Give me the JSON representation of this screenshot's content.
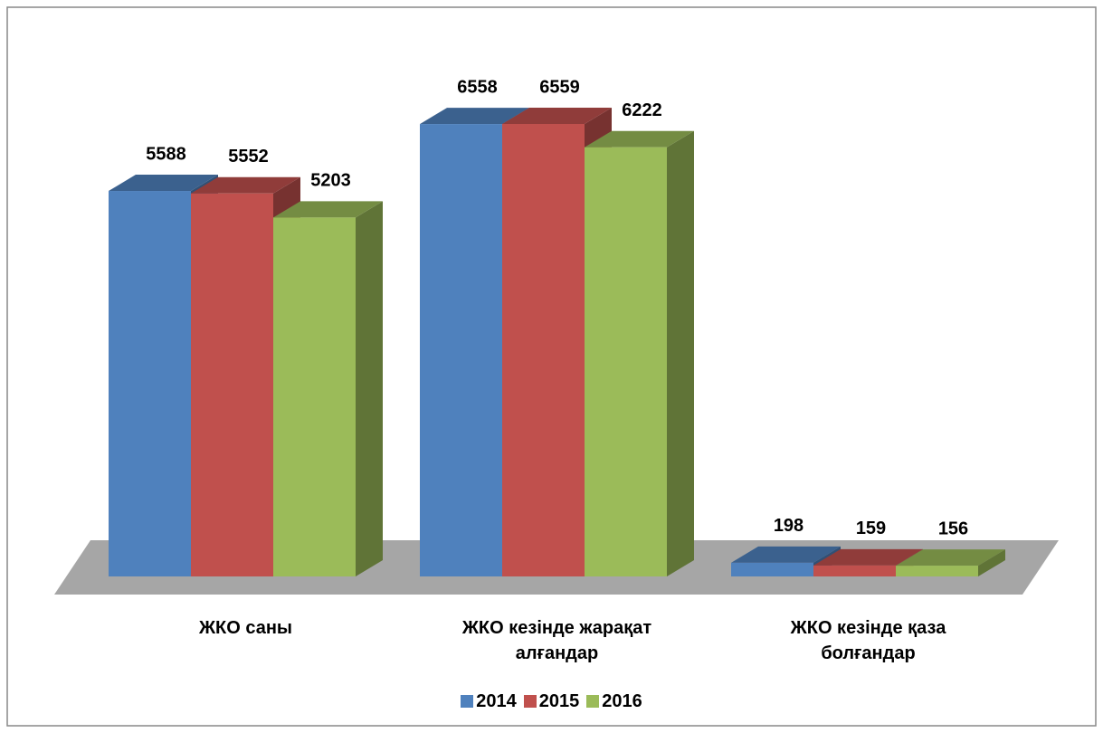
{
  "chart_data": {
    "type": "bar3d",
    "categories": [
      "ЖКО саны",
      "ЖКО кезінде жарақат алғандар",
      "ЖКО кезінде қаза болғандар"
    ],
    "series": [
      {
        "name": "2014",
        "color": "#4f81bd",
        "values": [
          5588,
          6558,
          198
        ]
      },
      {
        "name": "2015",
        "color": "#c0504d",
        "values": [
          5552,
          6559,
          159
        ]
      },
      {
        "name": "2016",
        "color": "#9bbb59",
        "values": [
          5203,
          6222,
          156
        ]
      }
    ],
    "legend": "bottom"
  }
}
